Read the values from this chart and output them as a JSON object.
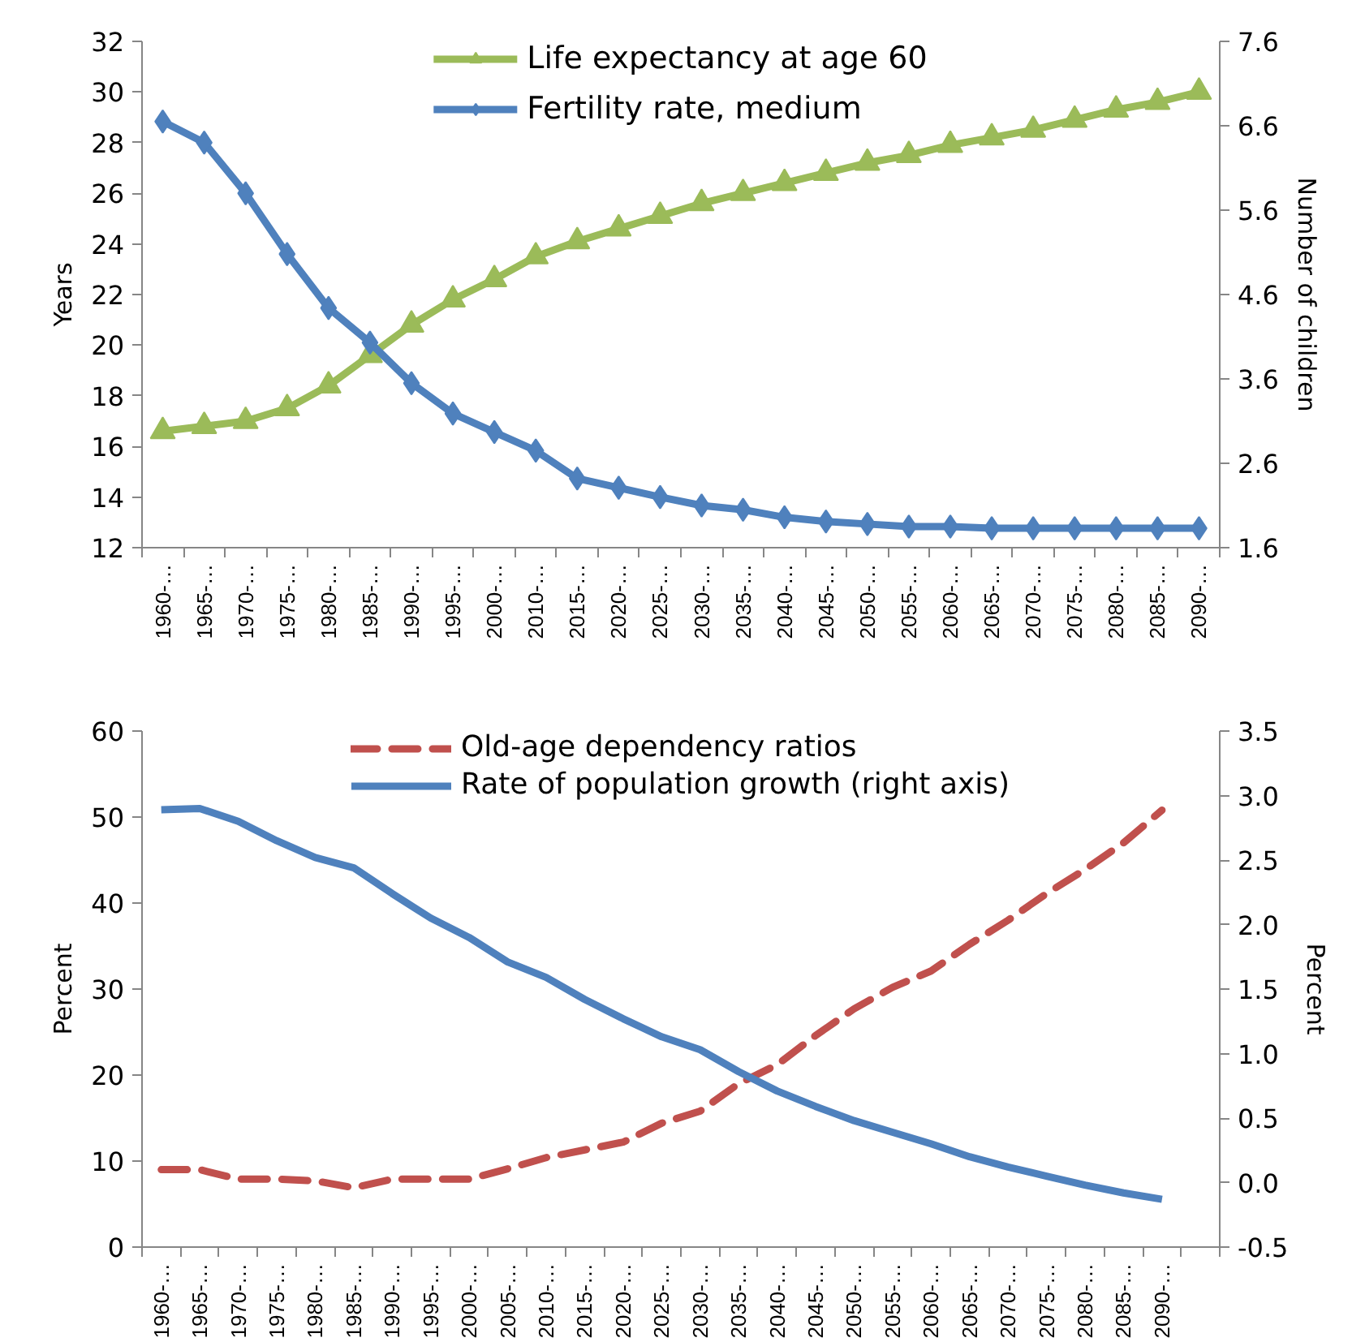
{
  "chart_data": [
    {
      "type": "line",
      "categories": [
        "1960-…",
        "1965-…",
        "1970-…",
        "1975-…",
        "1980-…",
        "1985-…",
        "1990-…",
        "1995-…",
        "2000-…",
        "2010-…",
        "2015-…",
        "2020-…",
        "2025-…",
        "2030-…",
        "2035-…",
        "2040-…",
        "2045-…",
        "2050-…",
        "2055-…",
        "2060-…",
        "2065-…",
        "2070-…",
        "2075-…",
        "2080-…",
        "2085-…",
        "2090-…"
      ],
      "ylabel": "Years",
      "y2label": "Number of children",
      "ylim": [
        12,
        32
      ],
      "yticks": [
        12,
        14,
        16,
        18,
        20,
        22,
        24,
        26,
        28,
        30,
        32
      ],
      "y2lim": [
        1.6,
        7.6
      ],
      "y2ticks": [
        1.6,
        2.6,
        3.6,
        4.6,
        5.6,
        6.6,
        7.6
      ],
      "legend": "top",
      "series": [
        {
          "name": "Life expectancy at age 60",
          "color": "#9bbb59",
          "marker": "triangle",
          "values": [
            16.6,
            16.8,
            17.0,
            17.5,
            18.4,
            19.6,
            20.8,
            21.8,
            22.6,
            23.5,
            24.1,
            24.6,
            25.1,
            25.6,
            26.0,
            26.4,
            26.8,
            27.2,
            27.5,
            27.9,
            28.2,
            28.5,
            28.9,
            29.3,
            29.6,
            30.0
          ]
        },
        {
          "name": "Fertility rate, medium",
          "color": "#4f81bd",
          "marker": "diamond",
          "axis": "y2",
          "values": [
            6.65,
            6.4,
            5.8,
            5.08,
            4.44,
            4.03,
            3.55,
            3.19,
            2.97,
            2.75,
            2.42,
            2.31,
            2.2,
            2.1,
            2.05,
            1.96,
            1.91,
            1.88,
            1.85,
            1.85,
            1.83,
            1.83,
            1.83,
            1.83,
            1.83,
            1.83
          ]
        }
      ]
    },
    {
      "type": "line",
      "categories": [
        "1960-…",
        "1965-…",
        "1970-…",
        "1975-…",
        "1980-…",
        "1985-…",
        "1990-…",
        "1995-…",
        "2000-…",
        "2005-…",
        "2010-…",
        "2015-…",
        "2020-…",
        "2025-…",
        "2030-…",
        "2035-…",
        "2040-…",
        "2045-…",
        "2050-…",
        "2055-…",
        "2060-…",
        "2065-…",
        "2070-…",
        "2075-…",
        "2080-…",
        "2085-…",
        "2090-…",
        null
      ],
      "ylabel": "Percent",
      "y2label": "Percent",
      "ylim": [
        0,
        60
      ],
      "yticks": [
        0,
        10,
        20,
        30,
        40,
        50,
        60
      ],
      "y2lim": [
        -0.5,
        3.5
      ],
      "y2ticks": [
        {
          "value": -0.5,
          "label": "-0.5"
        },
        {
          "value": 0,
          "label": "0.0"
        },
        {
          "value": 0.5,
          "label": "0.5"
        },
        {
          "value": 1,
          "label": "1.0"
        },
        {
          "value": 1.5,
          "label": "1.5"
        },
        {
          "value": 2,
          "label": "2.0"
        },
        {
          "value": 2.5,
          "label": "2.5"
        },
        {
          "value": 3,
          "label": "3.0"
        },
        {
          "value": 3.5,
          "label": "3.5"
        }
      ],
      "legend": "top",
      "series": [
        {
          "name": "Old-age dependency ratios",
          "color": "#c0504d",
          "line_style": "dashed",
          "values": [
            9.0,
            9.0,
            7.9,
            7.9,
            7.7,
            6.9,
            7.9,
            7.9,
            7.9,
            9.1,
            10.4,
            11.3,
            12.2,
            14.4,
            15.8,
            19.0,
            21.2,
            24.6,
            27.7,
            30.2,
            32.1,
            35.2,
            38.0,
            41.1,
            43.9,
            47.0,
            50.8,
            null
          ]
        },
        {
          "name": "Rate of population growth (right axis)",
          "color": "#4f81bd",
          "axis": "y2",
          "values": [
            2.89,
            2.9,
            2.8,
            2.65,
            2.52,
            2.44,
            2.24,
            2.05,
            1.9,
            1.71,
            1.59,
            1.42,
            1.27,
            1.13,
            1.03,
            0.86,
            0.71,
            0.59,
            0.48,
            0.39,
            0.3,
            0.2,
            0.12,
            0.05,
            -0.02,
            -0.08,
            -0.13,
            null
          ]
        }
      ]
    }
  ]
}
